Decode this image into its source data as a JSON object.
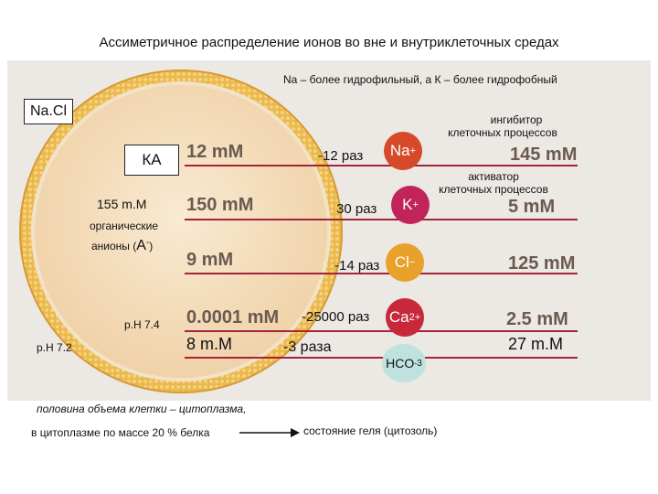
{
  "title": "Ассиметричное распределение ионов во вне и внутриклеточных средах",
  "subtitle": "Na – более гидрофильный, а К – более гидрофобный",
  "nacl": "Na.Cl",
  "inhibitor": [
    "ингибитор",
    "клеточных процессов"
  ],
  "activator": [
    "активатор",
    "клеточных процессов"
  ],
  "ka": "КА",
  "organic_conc": "155 m.M",
  "organic_label": [
    "органические",
    "анионы ("
  ],
  "anion_symbol": "A",
  "anion_charge": "-",
  "anion_close": ")",
  "ph_inner": "p.H 7.4",
  "ph_outer": "p.H 7.2",
  "rows": [
    {
      "inside": "12 mM",
      "ratio": "-12 раз",
      "ion": "Na",
      "charge": "+",
      "outside": "145 mM",
      "color": "#d64a2a"
    },
    {
      "inside": "150 mM",
      "ratio": "30 раз",
      "ion": "K",
      "charge": "+",
      "outside": "5 mM",
      "color": "#c2245a"
    },
    {
      "inside": "9 mM",
      "ratio": "-14 раз",
      "ion": "Cl",
      "charge": "−",
      "outside": "125 mM",
      "color": "#e8a12a"
    },
    {
      "inside": "0.0001 mM",
      "ratio": "-25000 раз",
      "ion": "Ca",
      "charge": "2+",
      "outside": "2.5 mM",
      "color": "#c7283a"
    }
  ],
  "hco3_row": {
    "inside": "8 m.M",
    "ratio": "-3 раза",
    "ion": "HCO",
    "charge": "-",
    "sub": "3",
    "outside": "27 m.M"
  },
  "bottom_note1": "половина объема клетки – цитоплазма,",
  "bottom_note2": "в цитоплазме по массе 20 % белка",
  "bottom_note3": "состояние геля (цитозоль)",
  "colors": {
    "line": "#a3243b",
    "membrane": "#e8b54a",
    "cytoplasm": "#f4dcb8",
    "hco3": "#bfe2df"
  }
}
